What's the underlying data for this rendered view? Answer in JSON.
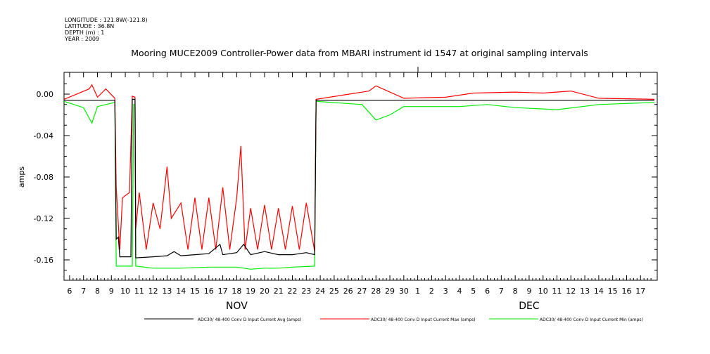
{
  "header": {
    "longitude": "LONGITUDE : 121.8W(-121.8)",
    "latitude": "LATITUDE : 36.8N",
    "depth": "DEPTH (m) : 1",
    "year": "YEAR : 2009"
  },
  "chart_data": {
    "type": "line",
    "title": "Mooring MUCE2009 Controller-Power data from MBARI instrument id 1547 at original sampling intervals",
    "ylabel": "amps",
    "xlabel": "",
    "ylim": [
      -0.18,
      0.015
    ],
    "yticks": [
      0.0,
      -0.04,
      -0.08,
      -0.12,
      -0.16
    ],
    "ytick_labels": [
      "0.00",
      "-0.04",
      "-0.08",
      "-0.12",
      "-0.16"
    ],
    "x_unit": "day (Nov 2009 = day of month; Dec days continue as 31+)",
    "xlim": [
      5.6,
      48.2
    ],
    "xtick_labels": [
      "6",
      "7",
      "8",
      "9",
      "10",
      "11",
      "12",
      "13",
      "14",
      "15",
      "16",
      "17",
      "18",
      "19",
      "20",
      "21",
      "22",
      "23",
      "24",
      "25",
      "26",
      "27",
      "28",
      "29",
      "30",
      "1",
      "2",
      "3",
      "4",
      "5",
      "6",
      "7",
      "8",
      "9",
      "10",
      "11",
      "12",
      "13",
      "14",
      "15",
      "16",
      "17"
    ],
    "month_labels": [
      {
        "label": "NOV",
        "center_day": 18
      },
      {
        "label": "DEC",
        "center_day": 39
      }
    ],
    "grid": false,
    "legend_position": "bottom",
    "series": [
      {
        "name": "ADC30/ 48-400 Conv D Input Current  Avg (amps)",
        "color": "#000000",
        "points": [
          [
            5.6,
            -0.006
          ],
          [
            9.25,
            -0.006
          ],
          [
            9.35,
            -0.14
          ],
          [
            9.5,
            -0.138
          ],
          [
            9.6,
            -0.157
          ],
          [
            10.4,
            -0.157
          ],
          [
            10.5,
            -0.005
          ],
          [
            10.7,
            -0.005
          ],
          [
            10.75,
            -0.158
          ],
          [
            12,
            -0.157
          ],
          [
            13,
            -0.156
          ],
          [
            13.5,
            -0.152
          ],
          [
            14,
            -0.156
          ],
          [
            15,
            -0.155
          ],
          [
            16,
            -0.154
          ],
          [
            16.8,
            -0.145
          ],
          [
            17,
            -0.155
          ],
          [
            18,
            -0.153
          ],
          [
            18.5,
            -0.145
          ],
          [
            19,
            -0.155
          ],
          [
            20,
            -0.152
          ],
          [
            21,
            -0.155
          ],
          [
            22,
            -0.155
          ],
          [
            23,
            -0.153
          ],
          [
            23.6,
            -0.155
          ],
          [
            23.7,
            -0.006
          ],
          [
            48,
            -0.006
          ]
        ]
      },
      {
        "name": "ADC30/ 48-400 Conv D Input Current  Max (amps)",
        "color": "#ff0000",
        "points": [
          [
            5.6,
            -0.005
          ],
          [
            7.4,
            0.005
          ],
          [
            7.6,
            0.009
          ],
          [
            8,
            -0.003
          ],
          [
            8.6,
            0.005
          ],
          [
            9.25,
            -0.004
          ],
          [
            9.35,
            -0.09
          ],
          [
            9.6,
            -0.15
          ],
          [
            9.8,
            -0.1
          ],
          [
            10.3,
            -0.095
          ],
          [
            10.5,
            -0.002
          ],
          [
            10.7,
            -0.003
          ],
          [
            10.75,
            -0.13
          ],
          [
            11,
            -0.095
          ],
          [
            11.5,
            -0.15
          ],
          [
            12,
            -0.105
          ],
          [
            12.5,
            -0.13
          ],
          [
            13,
            -0.07
          ],
          [
            13.3,
            -0.12
          ],
          [
            14,
            -0.105
          ],
          [
            14.5,
            -0.15
          ],
          [
            15,
            -0.1
          ],
          [
            15.5,
            -0.15
          ],
          [
            16,
            -0.1
          ],
          [
            16.5,
            -0.15
          ],
          [
            17,
            -0.09
          ],
          [
            17.5,
            -0.15
          ],
          [
            18,
            -0.1
          ],
          [
            18.3,
            -0.05
          ],
          [
            18.6,
            -0.15
          ],
          [
            19,
            -0.11
          ],
          [
            19.5,
            -0.15
          ],
          [
            20,
            -0.107
          ],
          [
            20.5,
            -0.15
          ],
          [
            21,
            -0.11
          ],
          [
            21.5,
            -0.15
          ],
          [
            22,
            -0.108
          ],
          [
            22.5,
            -0.15
          ],
          [
            23,
            -0.105
          ],
          [
            23.6,
            -0.152
          ],
          [
            23.7,
            -0.005
          ],
          [
            27.5,
            0.003
          ],
          [
            28,
            0.008
          ],
          [
            29,
            0.002
          ],
          [
            30,
            -0.004
          ],
          [
            33,
            -0.003
          ],
          [
            35,
            0.001
          ],
          [
            38,
            0.002
          ],
          [
            40,
            0.001
          ],
          [
            42,
            0.003
          ],
          [
            44,
            -0.004
          ],
          [
            48,
            -0.005
          ]
        ]
      },
      {
        "name": "ADC30/ 48-400 Conv D Input Current  Min (amps)",
        "color": "#00ee00",
        "points": [
          [
            5.6,
            -0.007
          ],
          [
            7,
            -0.013
          ],
          [
            7.6,
            -0.028
          ],
          [
            8,
            -0.012
          ],
          [
            9.25,
            -0.008
          ],
          [
            9.35,
            -0.166
          ],
          [
            10.5,
            -0.166
          ],
          [
            10.6,
            -0.01
          ],
          [
            10.7,
            -0.01
          ],
          [
            10.75,
            -0.166
          ],
          [
            12,
            -0.168
          ],
          [
            14,
            -0.168
          ],
          [
            16,
            -0.167
          ],
          [
            18,
            -0.167
          ],
          [
            19,
            -0.169
          ],
          [
            20,
            -0.168
          ],
          [
            21,
            -0.168
          ],
          [
            22,
            -0.167
          ],
          [
            23.6,
            -0.166
          ],
          [
            23.7,
            -0.007
          ],
          [
            27,
            -0.01
          ],
          [
            28,
            -0.025
          ],
          [
            29,
            -0.02
          ],
          [
            30,
            -0.012
          ],
          [
            34,
            -0.012
          ],
          [
            36,
            -0.01
          ],
          [
            38,
            -0.013
          ],
          [
            41,
            -0.015
          ],
          [
            44,
            -0.01
          ],
          [
            48,
            -0.008
          ]
        ]
      }
    ]
  }
}
